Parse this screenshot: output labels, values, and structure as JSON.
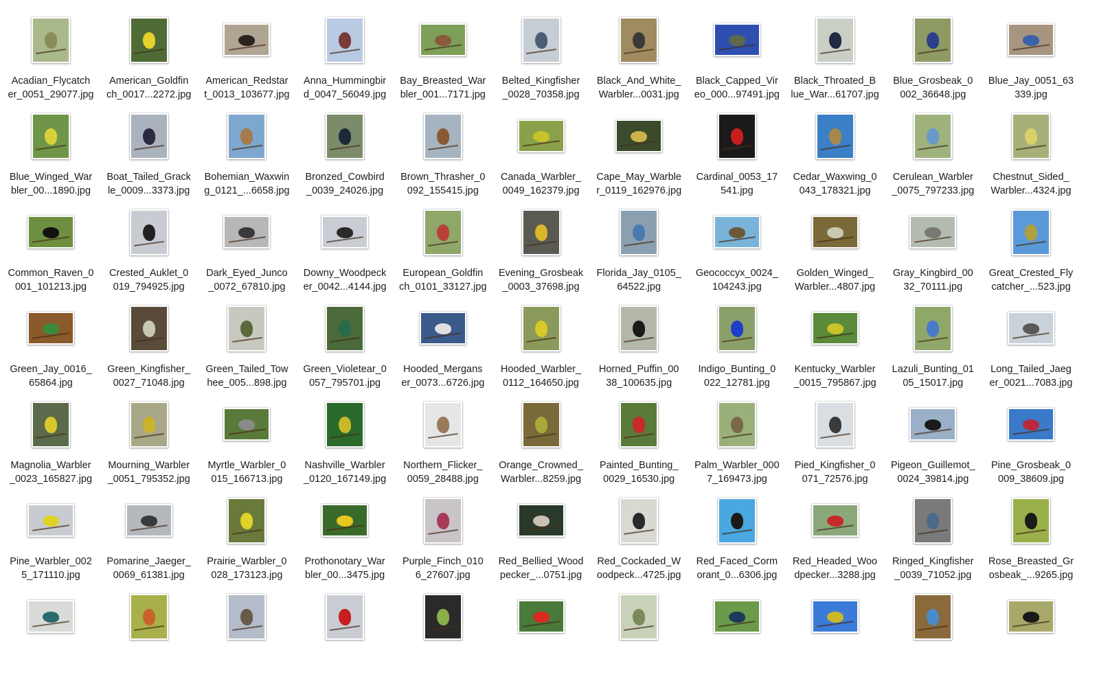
{
  "files": [
    {
      "l1": "Acadian_Flycatch",
      "l2": "er_0051_29077.jpg",
      "bg": "#a9b98a",
      "bird": "#8a8c5a",
      "o": "p"
    },
    {
      "l1": "American_Goldfin",
      "l2": "ch_0017...2272.jpg",
      "bg": "#4f6b35",
      "bird": "#e4d22a",
      "o": "p"
    },
    {
      "l1": "American_Redstar",
      "l2": "t_0013_103677.jpg",
      "bg": "#b0a592",
      "bird": "#2b241e",
      "o": "l"
    },
    {
      "l1": "Anna_Hummingbir",
      "l2": "d_0047_56049.jpg",
      "bg": "#b9cbe3",
      "bird": "#7a3a3a",
      "o": "p"
    },
    {
      "l1": "Bay_Breasted_War",
      "l2": "bler_001...7171.jpg",
      "bg": "#7d9f57",
      "bird": "#8a5a3a",
      "o": "l"
    },
    {
      "l1": "Belted_Kingfisher",
      "l2": "_0028_70358.jpg",
      "bg": "#c7cdd4",
      "bird": "#4a5f73",
      "o": "p"
    },
    {
      "l1": "Black_And_White_",
      "l2": "Warbler...0031.jpg",
      "bg": "#a08a5f",
      "bird": "#3a3a3a",
      "o": "p"
    },
    {
      "l1": "Black_Capped_Vir",
      "l2": "eo_000...97491.jpg",
      "bg": "#2f4fb0",
      "bird": "#5a6a4a",
      "o": "l"
    },
    {
      "l1": "Black_Throated_B",
      "l2": "lue_War...61707.jpg",
      "bg": "#c9cfc4",
      "bird": "#1f2a44",
      "o": "p"
    },
    {
      "l1": "Blue_Grosbeak_0",
      "l2": "002_36648.jpg",
      "bg": "#8e9a63",
      "bird": "#2b3f8a",
      "o": "p"
    },
    {
      "l1": "Blue_Jay_0051_63",
      "l2": "339.jpg",
      "bg": "#a89580",
      "bird": "#3a62a8",
      "o": "l"
    },
    {
      "l1": "Blue_Winged_War",
      "l2": "bler_00...1890.jpg",
      "bg": "#6f9648",
      "bird": "#d8d23a",
      "o": "p"
    },
    {
      "l1": "Boat_Tailed_Grack",
      "l2": "le_0009...3373.jpg",
      "bg": "#aab2bd",
      "bird": "#2a2a40",
      "o": "p"
    },
    {
      "l1": "Bohemian_Waxwin",
      "l2": "g_0121_...6658.jpg",
      "bg": "#7ea7cf",
      "bird": "#a67a4a",
      "o": "p"
    },
    {
      "l1": "Bronzed_Cowbird",
      "l2": "_0039_24026.jpg",
      "bg": "#7c8c6a",
      "bird": "#1e2a3a",
      "o": "p"
    },
    {
      "l1": "Brown_Thrasher_0",
      "l2": "092_155415.jpg",
      "bg": "#a6b3c0",
      "bird": "#8a5a32",
      "o": "p"
    },
    {
      "l1": "Canada_Warbler_",
      "l2": "0049_162379.jpg",
      "bg": "#8aa04a",
      "bird": "#c9c22a",
      "o": "l"
    },
    {
      "l1": "Cape_May_Warble",
      "l2": "r_0119_162976.jpg",
      "bg": "#3a4a2a",
      "bird": "#c9b34a",
      "o": "l"
    },
    {
      "l1": "Cardinal_0053_17",
      "l2": "541.jpg",
      "bg": "#1a1a1a",
      "bird": "#c81e1e",
      "o": "p"
    },
    {
      "l1": "Cedar_Waxwing_0",
      "l2": "043_178321.jpg",
      "bg": "#3b7fc7",
      "bird": "#a8884a",
      "o": "p"
    },
    {
      "l1": "Cerulean_Warbler",
      "l2": "_0075_797233.jpg",
      "bg": "#9fb27c",
      "bird": "#6a9ac9",
      "o": "p"
    },
    {
      "l1": "Chestnut_Sided_",
      "l2": "Warbler...4324.jpg",
      "bg": "#a8b07a",
      "bird": "#d9d06a",
      "o": "p"
    },
    {
      "l1": "Common_Raven_0",
      "l2": "001_101213.jpg",
      "bg": "#6e8f3f",
      "bird": "#111111",
      "o": "l"
    },
    {
      "l1": "Crested_Auklet_0",
      "l2": "019_794925.jpg",
      "bg": "#c8ccd2",
      "bird": "#222222",
      "o": "p"
    },
    {
      "l1": "Dark_Eyed_Junco",
      "l2": "_0072_67810.jpg",
      "bg": "#b7b7b7",
      "bird": "#3a3a3e",
      "o": "l"
    },
    {
      "l1": "Downy_Woodpeck",
      "l2": "er_0042...4144.jpg",
      "bg": "#c9ccd3",
      "bird": "#2a2a2a",
      "o": "l"
    },
    {
      "l1": "European_Goldfin",
      "l2": "ch_0101_33127.jpg",
      "bg": "#8fa86a",
      "bird": "#b8423a",
      "o": "p"
    },
    {
      "l1": "Evening_Grosbeak",
      "l2": "_0003_37698.jpg",
      "bg": "#5a5a52",
      "bird": "#d9b82a",
      "o": "p"
    },
    {
      "l1": "Florida_Jay_0105_",
      "l2": "64522.jpg",
      "bg": "#8aa0b0",
      "bird": "#4a7ab0",
      "o": "p"
    },
    {
      "l1": "Geococcyx_0024_",
      "l2": "104243.jpg",
      "bg": "#7ab3d9",
      "bird": "#6a5a3a",
      "o": "l"
    },
    {
      "l1": "Golden_Winged_",
      "l2": "Warbler...4807.jpg",
      "bg": "#7a6a3a",
      "bird": "#c9c9b0",
      "o": "l"
    },
    {
      "l1": "Gray_Kingbird_00",
      "l2": "32_70111.jpg",
      "bg": "#b4bcb2",
      "bird": "#7a7a72",
      "o": "l"
    },
    {
      "l1": "Great_Crested_Fly",
      "l2": "catcher_...523.jpg",
      "bg": "#5a9ad8",
      "bird": "#b0a040",
      "o": "p"
    },
    {
      "l1": "Green_Jay_0016_",
      "l2": "65864.jpg",
      "bg": "#8a5a2a",
      "bird": "#3a8a3a",
      "o": "l"
    },
    {
      "l1": "Green_Kingfisher_",
      "l2": "0027_71048.jpg",
      "bg": "#5a4a3a",
      "bird": "#c8c8b0",
      "o": "p"
    },
    {
      "l1": "Green_Tailed_Tow",
      "l2": "hee_005...898.jpg",
      "bg": "#c8c8c0",
      "bird": "#5a6a3a",
      "o": "p"
    },
    {
      "l1": "Green_Violetear_0",
      "l2": "057_795701.jpg",
      "bg": "#4a6a3a",
      "bird": "#2a6a4a",
      "o": "p"
    },
    {
      "l1": "Hooded_Mergans",
      "l2": "er_0073...6726.jpg",
      "bg": "#3a5a8a",
      "bird": "#e0e0e0",
      "o": "l"
    },
    {
      "l1": "Hooded_Warbler_",
      "l2": "0112_164650.jpg",
      "bg": "#8a9a5a",
      "bird": "#d9c82a",
      "o": "p"
    },
    {
      "l1": "Horned_Puffin_00",
      "l2": "38_100635.jpg",
      "bg": "#b3b8a8",
      "bird": "#1a1a1a",
      "o": "p"
    },
    {
      "l1": "Indigo_Bunting_0",
      "l2": "022_12781.jpg",
      "bg": "#8aa06a",
      "bird": "#1e3ec9",
      "o": "p"
    },
    {
      "l1": "Kentucky_Warbler",
      "l2": "_0015_795867.jpg",
      "bg": "#5a8a3a",
      "bird": "#c9c22a",
      "o": "l"
    },
    {
      "l1": "Lazuli_Bunting_01",
      "l2": "05_15017.jpg",
      "bg": "#8fa86a",
      "bird": "#4a7ac9",
      "o": "p"
    },
    {
      "l1": "Long_Tailed_Jaeg",
      "l2": "er_0021...7083.jpg",
      "bg": "#c9d2d9",
      "bird": "#5a5a5a",
      "o": "l"
    },
    {
      "l1": "Magnolia_Warbler",
      "l2": "_0023_165827.jpg",
      "bg": "#5a6a4a",
      "bird": "#d9c82a",
      "o": "p"
    },
    {
      "l1": "Mourning_Warbler",
      "l2": "_0051_795352.jpg",
      "bg": "#a8a888",
      "bird": "#c9b32a",
      "o": "p"
    },
    {
      "l1": "Myrtle_Warbler_0",
      "l2": "015_166713.jpg",
      "bg": "#5a7a3a",
      "bird": "#8a8a8a",
      "o": "l"
    },
    {
      "l1": "Nashville_Warbler",
      "l2": "_0120_167149.jpg",
      "bg": "#2a6a2a",
      "bird": "#c9b82a",
      "o": "p"
    },
    {
      "l1": "Northern_Flicker_",
      "l2": "0059_28488.jpg",
      "bg": "#e6e6e6",
      "bird": "#9a7a5a",
      "o": "p"
    },
    {
      "l1": "Orange_Crowned_",
      "l2": "Warbler...8259.jpg",
      "bg": "#7a6a3a",
      "bird": "#a8a83a",
      "o": "p"
    },
    {
      "l1": "Painted_Bunting_",
      "l2": "0029_16530.jpg",
      "bg": "#5a7a3a",
      "bird": "#c92a2a",
      "o": "p"
    },
    {
      "l1": "Palm_Warbler_000",
      "l2": "7_169473.jpg",
      "bg": "#9ab07a",
      "bird": "#7a6a4a",
      "o": "p"
    },
    {
      "l1": "Pied_Kingfisher_0",
      "l2": "071_72576.jpg",
      "bg": "#d9dee3",
      "bird": "#3a3a3a",
      "o": "p"
    },
    {
      "l1": "Pigeon_Guillemot_",
      "l2": "0024_39814.jpg",
      "bg": "#9ab0c9",
      "bird": "#1a1a1a",
      "o": "l"
    },
    {
      "l1": "Pine_Grosbeak_0",
      "l2": "009_38609.jpg",
      "bg": "#3a7ac9",
      "bird": "#b82a3a",
      "o": "l"
    },
    {
      "l1": "Pine_Warbler_002",
      "l2": "5_171110.jpg",
      "bg": "#c8ccd0",
      "bird": "#e0d22a",
      "o": "l"
    },
    {
      "l1": "Pomarine_Jaeger_",
      "l2": "0069_61381.jpg",
      "bg": "#b4b8bd",
      "bird": "#3a3a3a",
      "o": "l"
    },
    {
      "l1": "Prairie_Warbler_0",
      "l2": "028_173123.jpg",
      "bg": "#6a7a3a",
      "bird": "#e0d22a",
      "o": "p"
    },
    {
      "l1": "Prothonotary_War",
      "l2": "bler_00...3475.jpg",
      "bg": "#3a6a2a",
      "bird": "#e8c81e",
      "o": "l"
    },
    {
      "l1": "Purple_Finch_010",
      "l2": "6_27607.jpg",
      "bg": "#c8c4c8",
      "bird": "#a83a5a",
      "o": "p"
    },
    {
      "l1": "Red_Bellied_Wood",
      "l2": "pecker_...0751.jpg",
      "bg": "#2a3a2a",
      "bird": "#c8c0b0",
      "o": "l"
    },
    {
      "l1": "Red_Cockaded_W",
      "l2": "oodpeck...4725.jpg",
      "bg": "#d9d9d2",
      "bird": "#2a2a2a",
      "o": "p"
    },
    {
      "l1": "Red_Faced_Corm",
      "l2": "orant_0...6306.jpg",
      "bg": "#4aa8e0",
      "bird": "#1a1a1a",
      "o": "p"
    },
    {
      "l1": "Red_Headed_Woo",
      "l2": "dpecker...3288.jpg",
      "bg": "#8aa87a",
      "bird": "#c82a2a",
      "o": "l"
    },
    {
      "l1": "Ringed_Kingfisher",
      "l2": "_0039_71052.jpg",
      "bg": "#7a7a7a",
      "bird": "#4a6a8a",
      "o": "p"
    },
    {
      "l1": "Rose_Breasted_Gr",
      "l2": "osbeak_...9265.jpg",
      "bg": "#9ab04a",
      "bird": "#1a1a1a",
      "o": "p"
    },
    {
      "l1": "",
      "l2": "",
      "bg": "#d9dbd8",
      "bird": "#2a6a6a",
      "o": "l"
    },
    {
      "l1": "",
      "l2": "",
      "bg": "#a8b04a",
      "bird": "#c8642a",
      "o": "p"
    },
    {
      "l1": "",
      "l2": "",
      "bg": "#b3bcc8",
      "bird": "#6a5a4a",
      "o": "p"
    },
    {
      "l1": "",
      "l2": "",
      "bg": "#c9ccd3",
      "bird": "#c81e1e",
      "o": "p"
    },
    {
      "l1": "",
      "l2": "",
      "bg": "#2a2a2a",
      "bird": "#8ab04a",
      "o": "p"
    },
    {
      "l1": "",
      "l2": "",
      "bg": "#4a7a3a",
      "bird": "#d82a1e",
      "o": "l"
    },
    {
      "l1": "",
      "l2": "",
      "bg": "#c8d2b8",
      "bird": "#7a8a5a",
      "o": "p"
    },
    {
      "l1": "",
      "l2": "",
      "bg": "#6a9a4a",
      "bird": "#1e3a5a",
      "o": "l"
    },
    {
      "l1": "",
      "l2": "",
      "bg": "#3a7ad9",
      "bird": "#c9b82a",
      "o": "l"
    },
    {
      "l1": "",
      "l2": "",
      "bg": "#8a6a3a",
      "bird": "#4a8ac9",
      "o": "p"
    },
    {
      "l1": "",
      "l2": "",
      "bg": "#a8a86a",
      "bird": "#1a1a1a",
      "o": "l"
    }
  ]
}
